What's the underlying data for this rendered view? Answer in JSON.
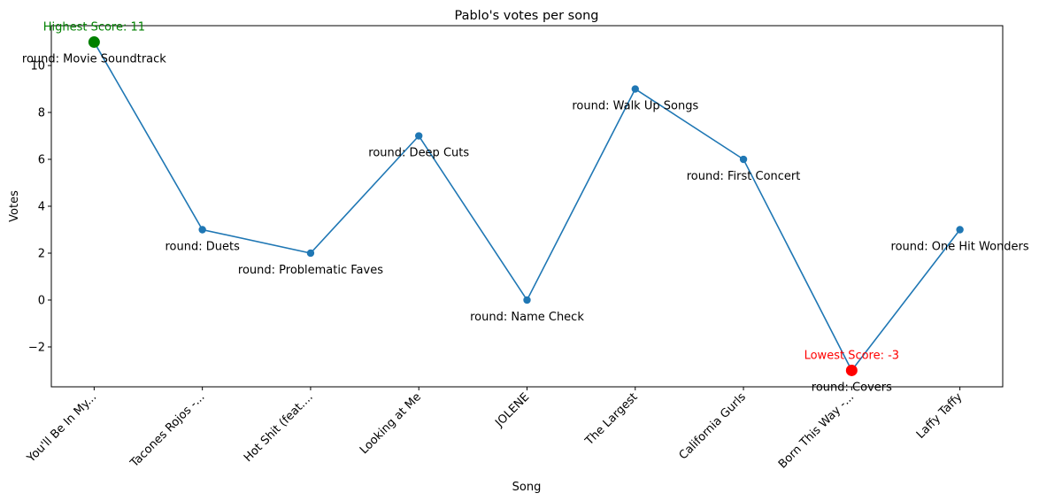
{
  "chart_data": {
    "type": "line",
    "title": "Pablo's votes per song",
    "xlabel": "Song",
    "ylabel": "Votes",
    "ylim": [
      -3.7,
      11.7
    ],
    "yticks": [
      -2,
      0,
      2,
      4,
      6,
      8,
      10
    ],
    "grid": false,
    "line_color": "#1f77b4",
    "categories": [
      "You'll Be In My...",
      "Tacones Rojos -...",
      "Hot Shit (feat....",
      "Looking at Me",
      "JOLENE",
      "The Largest",
      "California Gurls",
      "Born This Way -...",
      "Laffy Taffy"
    ],
    "series": [
      {
        "values": [
          11,
          3,
          2,
          7,
          0,
          9,
          6,
          -3,
          3
        ]
      }
    ],
    "annotations": [
      "round: Movie Soundtrack",
      "round: Duets",
      "round: Problematic Faves",
      "round: Deep Cuts",
      "round: Name Check",
      "round: Walk Up Songs",
      "round: First Concert",
      "round: Covers",
      "round: One Hit Wonders"
    ],
    "highest": {
      "label": "Highest Score: 11",
      "index": 0,
      "value": 11,
      "color": "#008000"
    },
    "lowest": {
      "label": "Lowest Score: -3",
      "index": 7,
      "value": -3,
      "color": "#ff0000"
    }
  }
}
